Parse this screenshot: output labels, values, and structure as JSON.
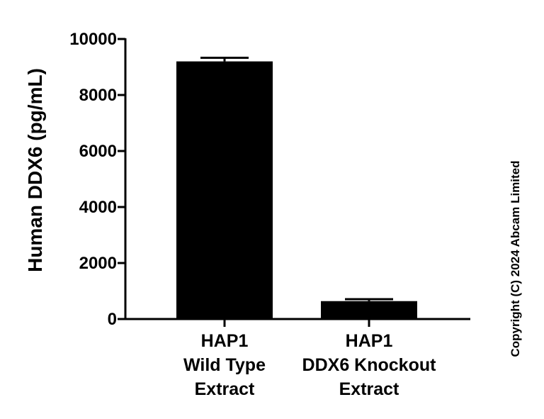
{
  "chart_data": {
    "type": "bar",
    "ylabel": "Human DDX6 (pg/mL)",
    "xlabel": "",
    "ylim": [
      0,
      10000
    ],
    "yticks": [
      "0",
      "2000",
      "4000",
      "6000",
      "8000",
      "10000"
    ],
    "categories": [
      [
        "HAP1",
        "Wild Type",
        "Extract"
      ],
      [
        "HAP1",
        "DDX6 Knockout",
        "Extract"
      ]
    ],
    "values": [
      9200,
      640
    ],
    "error_upper": [
      9330,
      710
    ],
    "bar_color": "#000000",
    "grid": false,
    "legend": "none"
  },
  "copyright": "Copyright (C) 2024 Abcam Limited"
}
